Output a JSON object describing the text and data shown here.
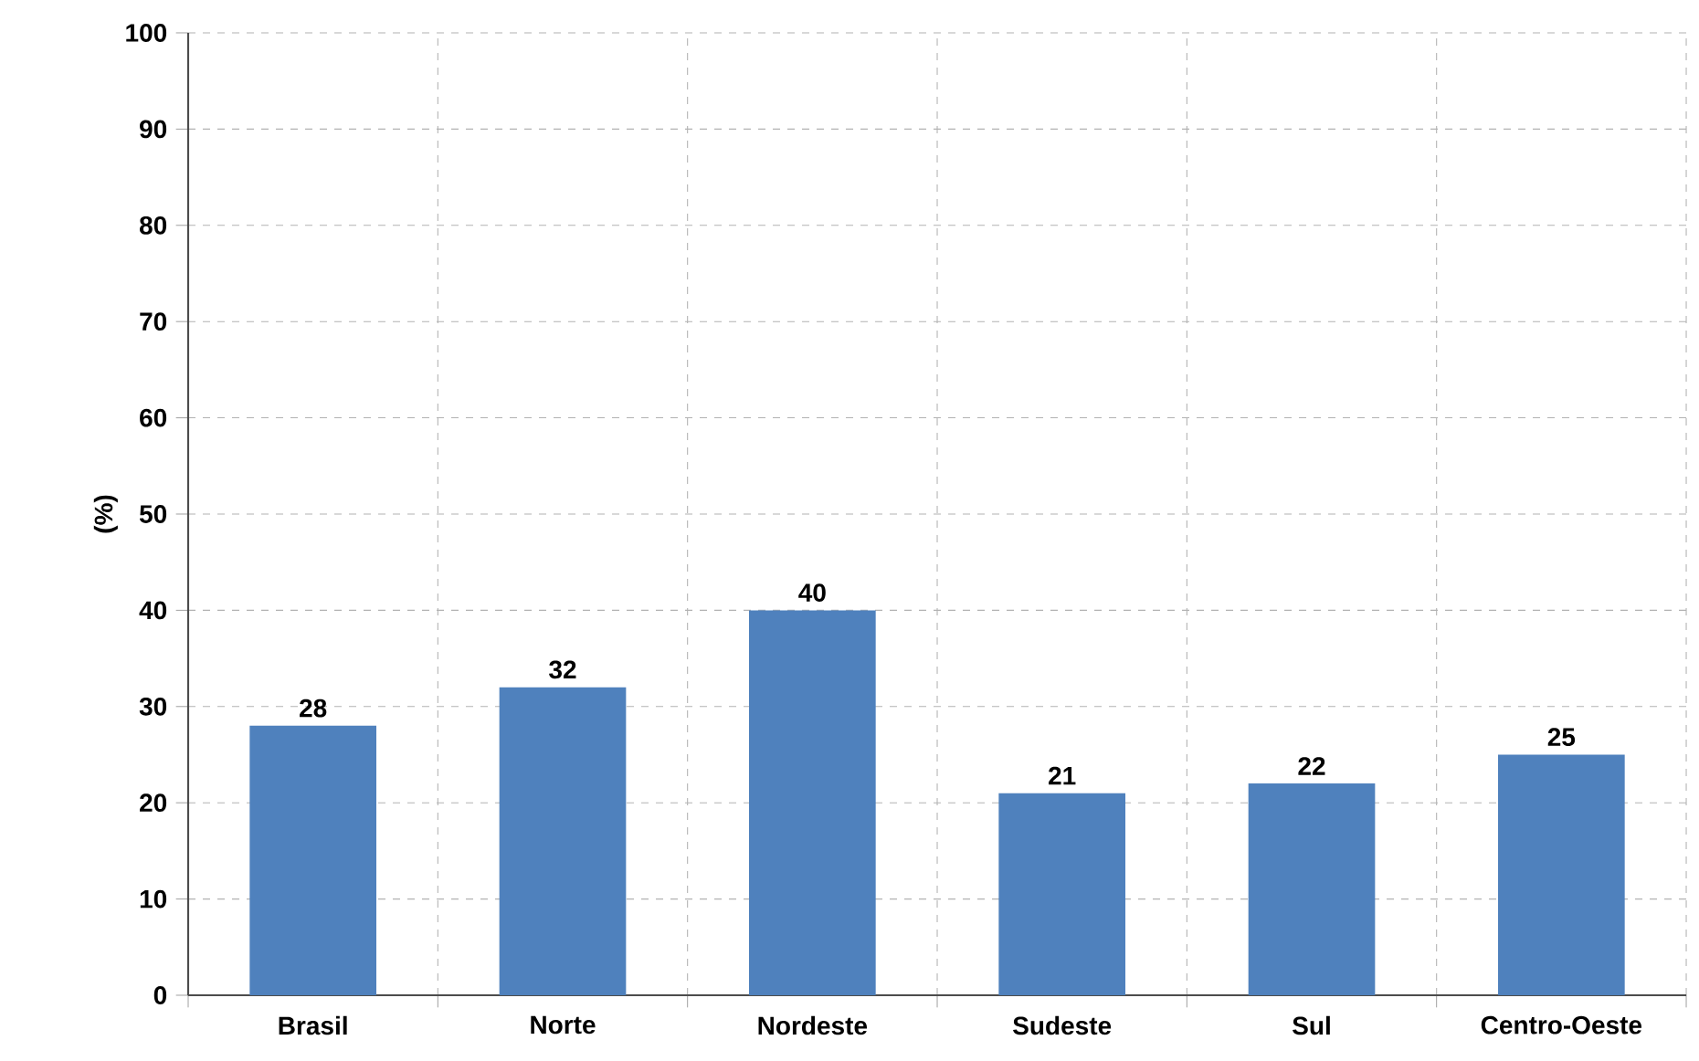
{
  "chart_data": {
    "type": "bar",
    "ylabel": "(%)",
    "categories": [
      "Brasil",
      "Norte",
      "Nordeste",
      "Sudeste",
      "Sul",
      "Centro-Oeste"
    ],
    "values": [
      28,
      32,
      40,
      21,
      22,
      25
    ],
    "color": "#4f81bd",
    "ylim": [
      0,
      100
    ],
    "yticks": [
      0,
      10,
      20,
      30,
      40,
      50,
      60,
      70,
      80,
      90,
      100
    ],
    "grid": true,
    "data_labels": true
  }
}
